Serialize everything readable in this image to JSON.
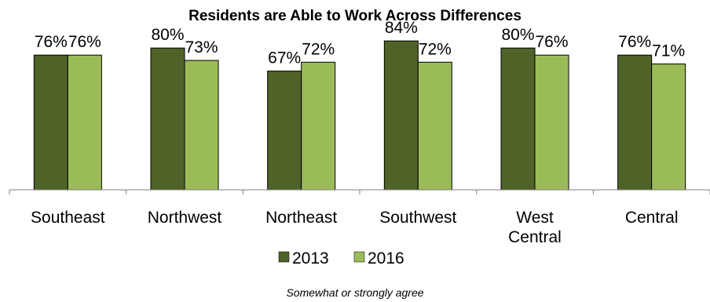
{
  "chart_data": {
    "type": "bar",
    "title": "Residents are Able to Work Across Differences",
    "categories": [
      "Southeast",
      "Northwest",
      "Northeast",
      "Southwest",
      "West Central",
      "Central"
    ],
    "series": [
      {
        "name": "2013",
        "values": [
          76,
          80,
          67,
          84,
          80,
          76
        ],
        "labels": [
          "76%",
          "80%",
          "67%",
          "84%",
          "80%",
          "76%"
        ],
        "color": "#4F6228"
      },
      {
        "name": "2016",
        "values": [
          76,
          73,
          72,
          72,
          76,
          71
        ],
        "labels": [
          "76%",
          "73%",
          "72%",
          "72%",
          "76%",
          "71%"
        ],
        "color": "#9BBB59"
      }
    ],
    "ylim": [
      0,
      100
    ],
    "xlabel": "",
    "ylabel": "",
    "legend": "bottom",
    "grid": false,
    "footnote": "Somewhat or strongly agree"
  }
}
